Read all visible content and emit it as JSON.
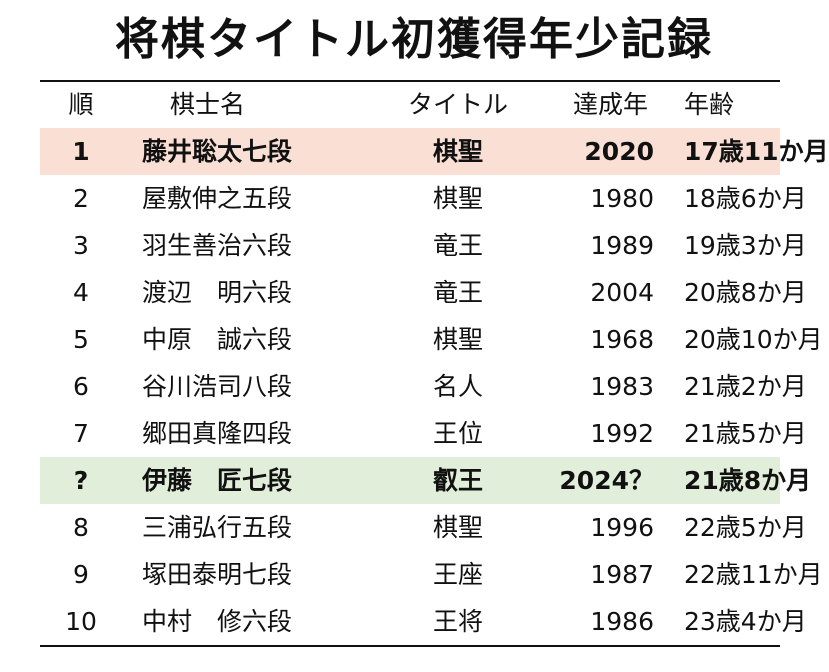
{
  "title": "将棋タイトル初獲得年少記録",
  "headers": {
    "rank": "順",
    "name": "棋士名",
    "title": "タイトル",
    "year": "達成年",
    "age": "年齢"
  },
  "highlight_colors": {
    "pink": "#fadfd4",
    "green": "#e1eed9"
  },
  "rows": [
    {
      "rank": "1",
      "name": "藤井聡太七段",
      "title": "棋聖",
      "year": "2020",
      "age": "17歳11か月",
      "highlight": "pink"
    },
    {
      "rank": "2",
      "name": "屋敷伸之五段",
      "title": "棋聖",
      "year": "1980",
      "age": "18歳6か月"
    },
    {
      "rank": "3",
      "name": "羽生善治六段",
      "title": "竜王",
      "year": "1989",
      "age": "19歳3か月"
    },
    {
      "rank": "4",
      "name": "渡辺　明六段",
      "title": "竜王",
      "year": "2004",
      "age": "20歳8か月"
    },
    {
      "rank": "5",
      "name": "中原　誠六段",
      "title": "棋聖",
      "year": "1968",
      "age": "20歳10か月"
    },
    {
      "rank": "6",
      "name": "谷川浩司八段",
      "title": "名人",
      "year": "1983",
      "age": "21歳2か月"
    },
    {
      "rank": "7",
      "name": "郷田真隆四段",
      "title": "王位",
      "year": "1992",
      "age": "21歳5か月"
    },
    {
      "rank": "?",
      "name": "伊藤　匠七段",
      "title": "叡王",
      "year": "2024？",
      "age": "21歳8か月",
      "highlight": "green"
    },
    {
      "rank": "8",
      "name": "三浦弘行五段",
      "title": "棋聖",
      "year": "1996",
      "age": "22歳5か月"
    },
    {
      "rank": "9",
      "name": "塚田泰明七段",
      "title": "王座",
      "year": "1987",
      "age": "22歳11か月"
    },
    {
      "rank": "10",
      "name": "中村　修六段",
      "title": "王将",
      "year": "1986",
      "age": "23歳4か月"
    }
  ]
}
